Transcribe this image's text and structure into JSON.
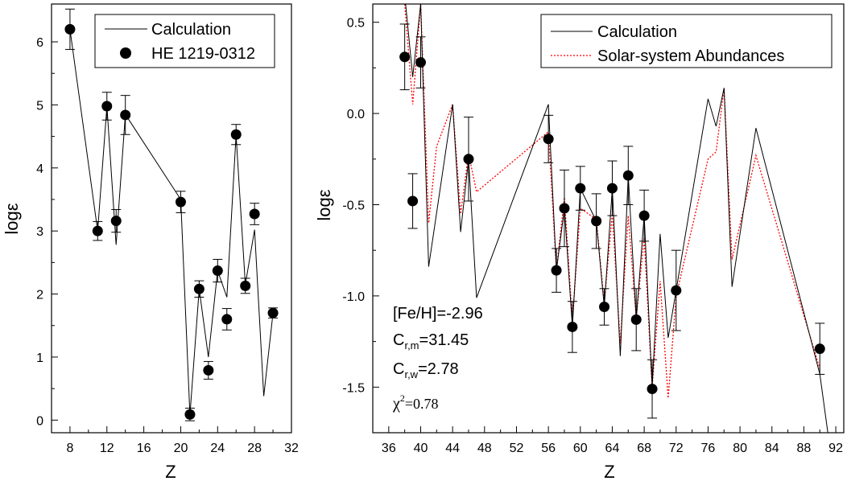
{
  "chart_data": [
    {
      "type": "scatter",
      "xlabel": "Z",
      "ylabel": "logε",
      "xlim": [
        6,
        32
      ],
      "ylim": [
        -0.2,
        6.6
      ],
      "x_ticks": [
        8,
        12,
        16,
        20,
        24,
        28,
        32
      ],
      "y_ticks": [
        0,
        1,
        2,
        3,
        4,
        5,
        6
      ],
      "legend": {
        "position": "top-right",
        "entries": [
          "Calculation",
          "HE 1219-0312"
        ]
      },
      "series": [
        {
          "name": "Calculation",
          "kind": "line",
          "color": "#000000",
          "x": [
            8,
            11,
            12,
            13,
            14,
            20,
            21,
            22,
            23,
            24,
            25,
            26,
            27,
            28,
            29,
            30
          ],
          "y": [
            6.2,
            3.0,
            4.98,
            2.78,
            4.85,
            3.5,
            0.08,
            2.08,
            1.0,
            2.37,
            1.95,
            4.52,
            2.15,
            3.02,
            0.38,
            1.7
          ]
        },
        {
          "name": "HE 1219-0312",
          "kind": "points",
          "color": "#000000",
          "x": [
            8,
            11,
            12,
            13,
            14,
            20,
            21,
            22,
            23,
            24,
            25,
            26,
            27,
            28,
            30
          ],
          "y": [
            6.2,
            3.0,
            4.98,
            3.16,
            4.84,
            3.46,
            0.09,
            2.08,
            0.79,
            2.37,
            1.6,
            4.53,
            2.13,
            3.27,
            1.7
          ],
          "err": [
            0.32,
            0.15,
            0.22,
            0.18,
            0.31,
            0.17,
            0.1,
            0.13,
            0.14,
            0.18,
            0.17,
            0.16,
            0.12,
            0.17,
            0.08
          ]
        }
      ]
    },
    {
      "type": "scatter",
      "xlabel": "Z",
      "ylabel": "logε",
      "xlim": [
        34,
        93
      ],
      "ylim": [
        -1.75,
        0.6
      ],
      "x_ticks": [
        36,
        40,
        44,
        48,
        52,
        56,
        60,
        64,
        68,
        72,
        76,
        80,
        84,
        88,
        92
      ],
      "y_ticks": [
        0.5,
        0.0,
        -0.5,
        -1.0,
        -1.5
      ],
      "y_tick_labels": [
        "0.5",
        "0.0",
        "-0.5",
        "-1.0",
        "-1.5"
      ],
      "legend": {
        "position": "top-right",
        "entries": [
          "Calculation",
          "Solar-system Abundances"
        ]
      },
      "annotations": {
        "feh": "[Fe/H]=-2.96",
        "crm_base": "C",
        "crm_sub": "r,m",
        "crm_val": "=31.45",
        "crw_base": "C",
        "crw_sub": "r,w",
        "crw_val": "=2.78",
        "chi_base": "χ",
        "chi_sup": "2",
        "chi_val": "=0.78"
      },
      "series": [
        {
          "name": "Calculation",
          "kind": "line",
          "color": "#000000",
          "x": [
            38,
            39,
            40,
            41,
            44,
            45,
            46,
            47,
            56,
            57,
            58,
            59,
            60,
            62,
            63,
            64,
            65,
            66,
            67,
            68,
            69,
            70,
            71,
            72,
            76,
            77,
            78,
            79,
            82,
            90,
            91
          ],
          "y": [
            0.65,
            0.2,
            0.6,
            -0.84,
            0.05,
            -0.65,
            -0.25,
            -1.01,
            0.05,
            -0.86,
            -0.52,
            -1.17,
            -0.41,
            -0.59,
            -1.06,
            -0.41,
            -1.33,
            -0.34,
            -1.13,
            -0.56,
            -1.5,
            -0.66,
            -1.23,
            -0.97,
            0.08,
            -0.07,
            0.14,
            -0.95,
            -0.08,
            -1.43,
            -1.75
          ]
        },
        {
          "name": "Solar-system Abundances",
          "kind": "line",
          "color": "#ff0000",
          "dashed": true,
          "x": [
            38,
            39,
            40,
            41,
            42,
            44,
            45,
            46,
            47,
            56,
            57,
            58,
            59,
            60,
            62,
            63,
            64,
            65,
            66,
            67,
            68,
            69,
            70,
            71,
            72,
            76,
            77,
            78,
            79,
            82,
            90
          ],
          "y": [
            0.6,
            0.05,
            0.6,
            -0.6,
            -0.18,
            0.05,
            -0.55,
            -0.22,
            -0.43,
            -0.1,
            -0.86,
            -0.46,
            -1.14,
            -0.52,
            -0.58,
            -1.04,
            -0.55,
            -1.26,
            -0.56,
            -1.12,
            -0.68,
            -1.5,
            -0.92,
            -1.56,
            -1.0,
            -0.25,
            -0.21,
            0.14,
            -0.8,
            -0.23,
            -1.4
          ]
        },
        {
          "name": "",
          "kind": "points",
          "color": "#000000",
          "x": [
            38,
            39,
            40,
            46,
            56,
            57,
            58,
            59,
            60,
            62,
            63,
            64,
            66,
            67,
            68,
            69,
            72,
            90
          ],
          "y": [
            0.31,
            -0.48,
            0.28,
            -0.25,
            -0.14,
            -0.86,
            -0.52,
            -1.17,
            -0.41,
            -0.59,
            -1.06,
            -0.41,
            -0.34,
            -1.13,
            -0.56,
            -1.51,
            -0.97,
            -1.29
          ],
          "err": [
            0.18,
            0.15,
            0.14,
            0.23,
            0.13,
            0.12,
            0.21,
            0.14,
            0.12,
            0.15,
            0.1,
            0.15,
            0.16,
            0.17,
            0.14,
            0.16,
            0.22,
            0.14
          ]
        }
      ]
    }
  ]
}
